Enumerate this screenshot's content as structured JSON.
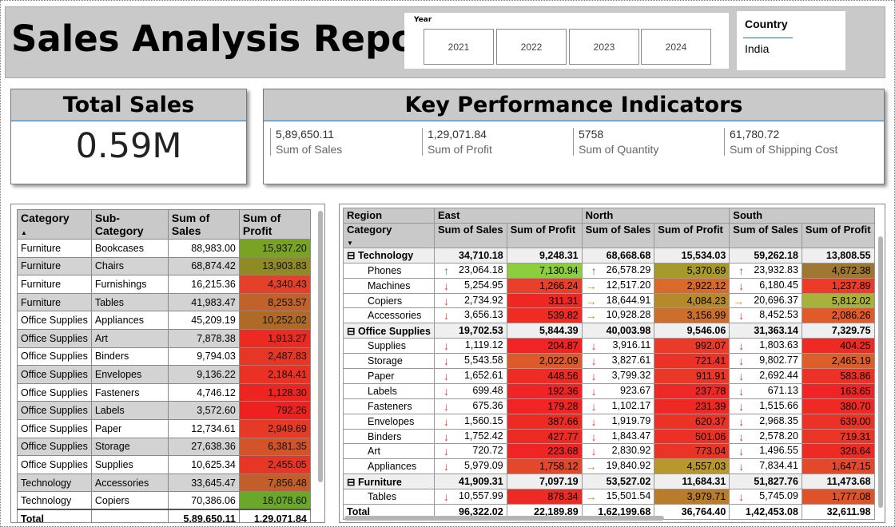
{
  "title": "Sales Analysis Report",
  "year_slicer": {
    "label": "Year",
    "options": [
      "2021",
      "2022",
      "2023",
      "2024"
    ]
  },
  "country_slicer": {
    "label": "Country",
    "value": "India"
  },
  "total_sales": {
    "title": "Total Sales",
    "value": "0.59M"
  },
  "kpi": {
    "title": "Key Performance Indicators",
    "items": [
      {
        "value": "5,89,650.11",
        "label": "Sum of Sales"
      },
      {
        "value": "1,29,071.84",
        "label": "Sum of Profit"
      },
      {
        "value": "5758",
        "label": "Sum of Quantity"
      },
      {
        "value": "61,780.72",
        "label": "Sum of Shipping Cost"
      }
    ]
  },
  "left_table": {
    "headers": [
      "Category",
      "Sub-Category",
      "Sum of Sales",
      "Sum of Profit"
    ],
    "rows": [
      [
        "Furniture",
        "Bookcases",
        "88,983.00",
        "15,937.20",
        "#7aa325"
      ],
      [
        "Furniture",
        "Chairs",
        "68,874.42",
        "13,903.83",
        "#8f8a22"
      ],
      [
        "Furniture",
        "Furnishings",
        "16,215.36",
        "4,340.43",
        "#e4402a"
      ],
      [
        "Furniture",
        "Tables",
        "41,983.47",
        "8,253.57",
        "#c0622a"
      ],
      [
        "Office Supplies",
        "Appliances",
        "45,209.19",
        "10,252.02",
        "#ae6a26"
      ],
      [
        "Office Supplies",
        "Art",
        "7,878.38",
        "1,913.27",
        "#ec2a22"
      ],
      [
        "Office Supplies",
        "Binders",
        "9,794.03",
        "2,487.83",
        "#e83626"
      ],
      [
        "Office Supplies",
        "Envelopes",
        "9,136.22",
        "2,184.41",
        "#ea3124"
      ],
      [
        "Office Supplies",
        "Fasteners",
        "4,746.12",
        "1,128.30",
        "#ee2420"
      ],
      [
        "Office Supplies",
        "Labels",
        "3,572.60",
        "792.26",
        "#f0201f"
      ],
      [
        "Office Supplies",
        "Paper",
        "12,734.61",
        "2,949.69",
        "#e63a26"
      ],
      [
        "Office Supplies",
        "Storage",
        "27,638.36",
        "6,381.35",
        "#d25428"
      ],
      [
        "Office Supplies",
        "Supplies",
        "10,625.34",
        "2,455.05",
        "#e83626"
      ],
      [
        "Technology",
        "Accessories",
        "33,645.47",
        "7,856.48",
        "#c25e29"
      ],
      [
        "Technology",
        "Copiers",
        "70,386.06",
        "18,078.60",
        "#6aa82a"
      ]
    ],
    "total": [
      "Total",
      "",
      "5,89,650.11",
      "1,29,071.84"
    ]
  },
  "matrix": {
    "regions": [
      "East",
      "North",
      "South"
    ],
    "row_header": "Region",
    "category_header": "Category",
    "measures": [
      "Sum of Sales",
      "Sum of Profit"
    ],
    "rows": [
      {
        "type": "cat",
        "name": "Technology",
        "vals": [
          "34,710.18",
          "9,248.31",
          "68,668.68",
          "15,534.03",
          "59,262.18",
          "13,808.55"
        ]
      },
      {
        "type": "sub",
        "name": "Phones",
        "arrows": [
          "up",
          "up",
          "up"
        ],
        "vals": [
          "23,064.18",
          "7,130.94",
          "26,578.29",
          "5,370.69",
          "23,932.83",
          "4,672.38"
        ],
        "colors": [
          "#8ccf3e",
          "#a79a2c",
          "#9e7830"
        ]
      },
      {
        "type": "sub",
        "name": "Machines",
        "arrows": [
          "down",
          "side",
          "down"
        ],
        "vals": [
          "5,254.95",
          "1,266.24",
          "12,517.20",
          "2,922.12",
          "6,180.45",
          "1,237.89"
        ],
        "colors": [
          "#e8402a",
          "#d86a2c",
          "#ea3c28"
        ]
      },
      {
        "type": "sub",
        "name": "Copiers",
        "arrows": [
          "down",
          "side",
          "side"
        ],
        "vals": [
          "2,734.92",
          "311.31",
          "18,644.91",
          "4,084.23",
          "20,696.37",
          "5,812.02"
        ],
        "colors": [
          "#f02624",
          "#b68a2a",
          "#a8b23a"
        ]
      },
      {
        "type": "sub",
        "name": "Accessories",
        "arrows": [
          "down",
          "side",
          "down"
        ],
        "vals": [
          "3,656.13",
          "539.82",
          "10,928.28",
          "3,156.99",
          "8,452.53",
          "2,086.26"
        ],
        "colors": [
          "#ee2c24",
          "#cc6e2c",
          "#e05a2a"
        ]
      },
      {
        "type": "cat",
        "name": "Office Supplies",
        "vals": [
          "19,702.53",
          "5,844.39",
          "40,003.98",
          "9,546.06",
          "31,363.14",
          "7,329.75"
        ]
      },
      {
        "type": "sub",
        "name": "Supplies",
        "arrows": [
          "down",
          "down",
          "down"
        ],
        "vals": [
          "1,119.12",
          "204.87",
          "3,916.11",
          "992.07",
          "1,803.63",
          "404.25"
        ],
        "colors": [
          "#f02424",
          "#ea3a28",
          "#ee2a24"
        ]
      },
      {
        "type": "sub",
        "name": "Storage",
        "arrows": [
          "down",
          "down",
          "down"
        ],
        "vals": [
          "5,543.58",
          "2,022.09",
          "3,827.61",
          "721.41",
          "9,802.77",
          "2,465.19"
        ],
        "colors": [
          "#de5a2a",
          "#ec3226",
          "#dc5e2a"
        ]
      },
      {
        "type": "sub",
        "name": "Paper",
        "arrows": [
          "down",
          "down",
          "down"
        ],
        "vals": [
          "1,652.61",
          "448.56",
          "3,799.32",
          "911.91",
          "2,692.44",
          "583.86"
        ],
        "colors": [
          "#ee2c24",
          "#ea3828",
          "#ec3226"
        ]
      },
      {
        "type": "sub",
        "name": "Labels",
        "arrows": [
          "down",
          "down",
          "down"
        ],
        "vals": [
          "699.48",
          "192.36",
          "923.67",
          "237.78",
          "671.13",
          "163.65"
        ],
        "colors": [
          "#f02424",
          "#ee2824",
          "#f02424"
        ]
      },
      {
        "type": "sub",
        "name": "Fasteners",
        "arrows": [
          "down",
          "down",
          "down"
        ],
        "vals": [
          "675.36",
          "179.28",
          "1,102.17",
          "231.39",
          "1,515.66",
          "380.70"
        ],
        "colors": [
          "#f02424",
          "#ee2824",
          "#ee2a24"
        ]
      },
      {
        "type": "sub",
        "name": "Envelopes",
        "arrows": [
          "down",
          "down",
          "down"
        ],
        "vals": [
          "1,560.15",
          "387.66",
          "1,919.79",
          "620.37",
          "2,968.35",
          "639.00"
        ],
        "colors": [
          "#ee2a24",
          "#ec3226",
          "#ec3226"
        ]
      },
      {
        "type": "sub",
        "name": "Binders",
        "arrows": [
          "down",
          "down",
          "down"
        ],
        "vals": [
          "1,752.42",
          "427.77",
          "1,843.47",
          "501.06",
          "2,578.20",
          "719.31"
        ],
        "colors": [
          "#ee2a24",
          "#ec3026",
          "#ea3426"
        ]
      },
      {
        "type": "sub",
        "name": "Art",
        "arrows": [
          "down",
          "down",
          "down"
        ],
        "vals": [
          "720.72",
          "223.68",
          "2,830.92",
          "773.04",
          "1,496.55",
          "326.64"
        ],
        "colors": [
          "#f02424",
          "#ea3426",
          "#ee2a24"
        ]
      },
      {
        "type": "sub",
        "name": "Appliances",
        "arrows": [
          "down",
          "side",
          "down"
        ],
        "vals": [
          "5,979.09",
          "1,758.12",
          "19,840.92",
          "4,557.03",
          "7,834.41",
          "1,647.15"
        ],
        "colors": [
          "#e4482a",
          "#b8982c",
          "#e4482a"
        ]
      },
      {
        "type": "cat",
        "name": "Furniture",
        "vals": [
          "41,909.31",
          "7,097.19",
          "53,527.02",
          "11,684.31",
          "51,827.76",
          "11,473.68"
        ]
      },
      {
        "type": "sub",
        "name": "Tables",
        "arrows": [
          "down",
          "side",
          "down"
        ],
        "vals": [
          "10,557.99",
          "878.34",
          "15,501.54",
          "3,979.71",
          "5,745.09",
          "1,777.08"
        ],
        "colors": [
          "#ee2a24",
          "#b87c2a",
          "#e0522a"
        ]
      }
    ],
    "total": {
      "name": "Total",
      "vals": [
        "96,322.02",
        "22,189.89",
        "1,62,199.68",
        "36,764.40",
        "1,42,453.08",
        "32,611.98"
      ]
    }
  }
}
